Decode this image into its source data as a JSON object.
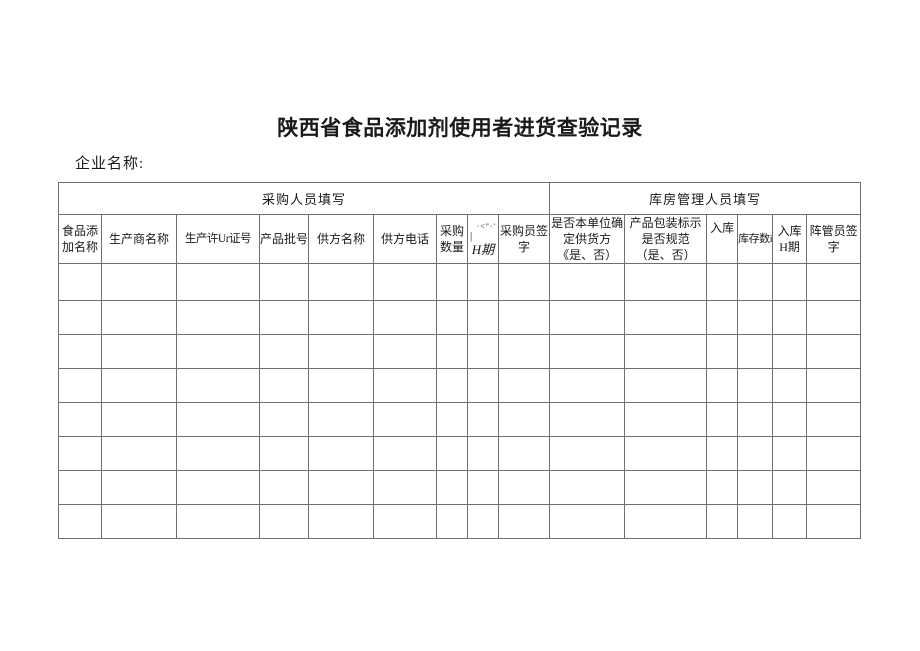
{
  "page_title": "陕西省食品添加剂使用者进货查验记录",
  "company_name_label": "企业名称:",
  "table": {
    "group_headers": [
      {
        "id": "procurement",
        "label": "采购人员填写",
        "colspan": 9
      },
      {
        "id": "warehouse",
        "label": "库房管理人员填写",
        "colspan": 6
      }
    ],
    "columns": [
      {
        "id": "additive-name",
        "lines": [
          "食品添",
          "加名称"
        ]
      },
      {
        "id": "manufacturer-name",
        "lines": [
          "生产商名称"
        ]
      },
      {
        "id": "production-license-no",
        "lines": [
          "生产许Ur证号"
        ]
      },
      {
        "id": "product-batch-no",
        "lines": [
          "产品批号"
        ]
      },
      {
        "id": "supplier-name",
        "lines": [
          "供方名称"
        ]
      },
      {
        "id": "supplier-phone",
        "lines": [
          "供方电话"
        ]
      },
      {
        "id": "purchase-quantity",
        "lines": [
          "采购",
          "数量"
        ]
      },
      {
        "id": "purchase-date",
        "garbled_top": "·<\"·'",
        "garbled_mid": "|",
        "garbled_bottom": "H期"
      },
      {
        "id": "purchaser-signature",
        "lines": [
          "采购员签",
          "字"
        ]
      },
      {
        "id": "supplier-confirmed",
        "lines": [
          "是否本单位确",
          "定供货方",
          "《是、否）"
        ]
      },
      {
        "id": "packaging-compliant",
        "lines": [
          "产品包装标示",
          "是否规范",
          "（是、否）"
        ]
      },
      {
        "id": "warehouse-entry",
        "lines": [
          "入库"
        ]
      },
      {
        "id": "stock-quantity",
        "lines": [
          "库存数i"
        ]
      },
      {
        "id": "entry-date",
        "lines": [
          "入库",
          "H期"
        ]
      },
      {
        "id": "warehouse-keeper-signature",
        "lines": [
          "阵管员签",
          "字"
        ]
      }
    ],
    "body_rows": 8,
    "body_cols": 15
  },
  "colors": {
    "border": "#6f6f6f",
    "text": "#1a1a1a",
    "background": "#ffffff"
  }
}
